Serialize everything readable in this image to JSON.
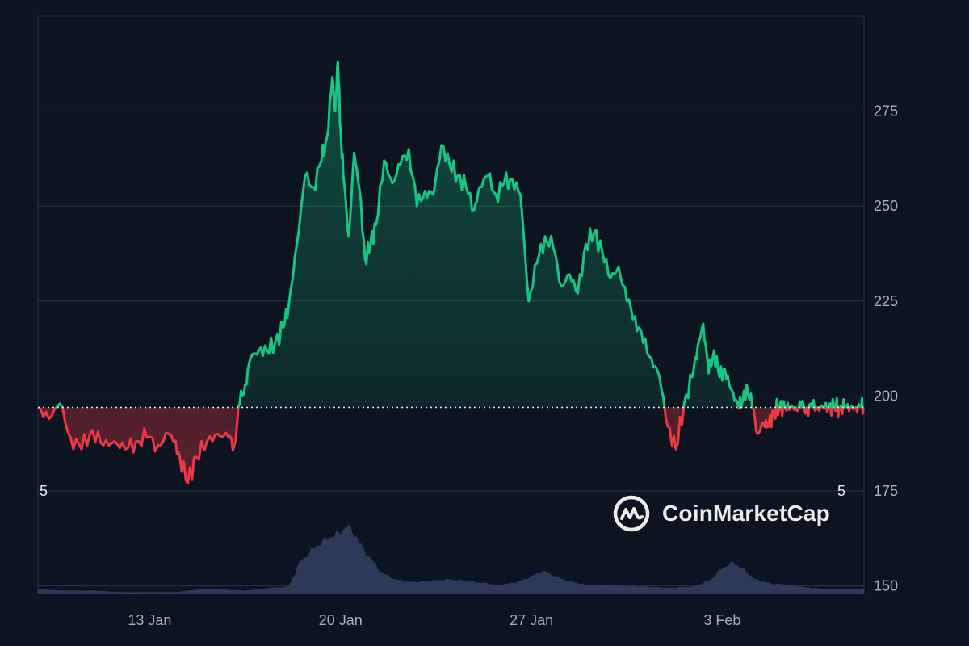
{
  "colors": {
    "background": "#0d1421",
    "grid": "#2a3140",
    "axis_text": "#a6b0c3",
    "up": "#16c784",
    "down": "#ea3943",
    "volume": "#303a5c",
    "baseline": "#e6e9ef"
  },
  "watermark": {
    "icon": "coinmarketcap-logo-icon",
    "text": "CoinMarketCap"
  },
  "volume_axis_marks": {
    "left": "5",
    "right": "5"
  },
  "chart_data": {
    "type": "area",
    "subtype": "price-with-volume",
    "title": "",
    "xlabel": "",
    "ylabel": "",
    "baseline": 197,
    "ylim": [
      148,
      300
    ],
    "y_ticks": [
      150,
      175,
      200,
      225,
      250,
      275
    ],
    "y_axis_side": "right",
    "grid": "horizontal",
    "x_ticks": [
      "13 Jan",
      "20 Jan",
      "27 Jan",
      "3 Feb"
    ],
    "x_range_days": [
      8.9,
      39.2
    ],
    "x_tick_positions_days": [
      13,
      20,
      27,
      34
    ],
    "series": [
      {
        "name": "",
        "x_days": [
          8.9,
          9.3,
          9.7,
          10.1,
          10.5,
          10.9,
          11.3,
          11.7,
          12.1,
          12.5,
          12.9,
          13.3,
          13.7,
          13.9,
          14.1,
          14.4,
          14.7,
          15.1,
          15.5,
          15.9,
          16.1,
          16.3,
          16.5,
          16.7,
          17.0,
          17.3,
          17.6,
          17.9,
          18.1,
          18.4,
          18.7,
          19.0,
          19.3,
          19.5,
          19.7,
          19.8,
          19.9,
          20.0,
          20.1,
          20.3,
          20.5,
          20.7,
          20.9,
          21.1,
          21.3,
          21.6,
          21.9,
          22.2,
          22.5,
          22.8,
          23.1,
          23.4,
          23.7,
          24.0,
          24.3,
          24.6,
          24.9,
          25.1,
          25.4,
          25.7,
          26.0,
          26.3,
          26.6,
          26.9,
          27.2,
          27.5,
          27.8,
          28.1,
          28.4,
          28.7,
          29.0,
          29.3,
          29.6,
          29.9,
          30.2,
          30.5,
          30.8,
          31.1,
          31.4,
          31.7,
          32.0,
          32.3,
          32.6,
          32.9,
          33.1,
          33.3,
          33.5,
          33.7,
          33.9,
          34.1,
          34.3,
          34.5,
          34.7,
          34.9,
          35.1,
          35.3,
          35.5,
          35.7,
          35.9,
          36.1,
          36.3,
          36.5,
          36.7,
          36.9,
          37.1,
          37.3,
          37.5,
          37.7,
          37.9,
          38.1,
          38.3,
          38.5,
          38.7,
          38.9,
          39.1,
          39.2
        ],
        "y": [
          197,
          194,
          198,
          189,
          186,
          191,
          187,
          188,
          186,
          188,
          189,
          187,
          190,
          188,
          184,
          177,
          184,
          188,
          190,
          189,
          187,
          198,
          203,
          210,
          212,
          212,
          214,
          218,
          224,
          240,
          258,
          255,
          262,
          268,
          284,
          275,
          288,
          270,
          258,
          242,
          264,
          254,
          236,
          240,
          245,
          262,
          256,
          261,
          265,
          250,
          254,
          253,
          266,
          261,
          258,
          255,
          249,
          255,
          258,
          253,
          256,
          257,
          253,
          225,
          235,
          242,
          239,
          229,
          232,
          227,
          240,
          243,
          238,
          231,
          234,
          225,
          221,
          214,
          210,
          205,
          192,
          186,
          198,
          205,
          213,
          219,
          206,
          212,
          205,
          207,
          202,
          199,
          197,
          203,
          197,
          190,
          193,
          192,
          196,
          197,
          197,
          197,
          197,
          197,
          197,
          197,
          197,
          197,
          197,
          197,
          197,
          197,
          197,
          197,
          197,
          197
        ]
      },
      {
        "name": "",
        "type": "volume",
        "x_days": [
          8.9,
          10.0,
          11.0,
          12.0,
          13.0,
          14.0,
          14.8,
          15.5,
          16.5,
          17.5,
          18.1,
          18.5,
          18.8,
          19.2,
          19.6,
          20.0,
          20.2,
          20.4,
          20.6,
          20.8,
          21.1,
          21.5,
          22.0,
          22.6,
          23.2,
          24.0,
          25.0,
          25.8,
          26.5,
          27.0,
          27.4,
          27.8,
          28.3,
          29.0,
          30.0,
          31.0,
          32.0,
          33.0,
          33.6,
          34.0,
          34.4,
          34.8,
          35.2,
          35.8,
          36.5,
          37.2,
          38.0,
          39.2
        ],
        "y": [
          3,
          2,
          2,
          1,
          1,
          1,
          3,
          3,
          2,
          4,
          5,
          22,
          28,
          35,
          40,
          43,
          48,
          45,
          40,
          32,
          25,
          15,
          10,
          8,
          9,
          10,
          8,
          6,
          8,
          12,
          16,
          13,
          9,
          6,
          6,
          5,
          4,
          5,
          10,
          18,
          22,
          17,
          10,
          7,
          6,
          4,
          3,
          3
        ]
      }
    ]
  }
}
